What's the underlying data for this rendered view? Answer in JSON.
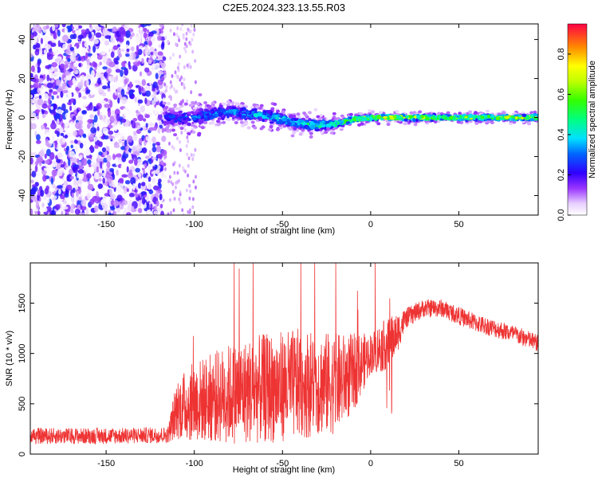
{
  "title": "C2E5.2024.323.13.55.R03",
  "chart_data": [
    {
      "type": "heatmap",
      "name": "spectrogram",
      "xlabel": "Height of straight line (km)",
      "ylabel": "Frequency (Hz)",
      "xlim": [
        -193,
        95
      ],
      "ylim": [
        -50,
        48
      ],
      "xticks": [
        -150,
        -100,
        -50,
        0,
        50
      ],
      "yticks": [
        -40,
        -20,
        0,
        20,
        40
      ],
      "noise_region": {
        "x": [
          -193,
          -117
        ],
        "y": [
          -50,
          48
        ]
      },
      "signal_track": {
        "x": [
          -117,
          -100,
          -80,
          -60,
          -40,
          -30,
          -20,
          -10,
          0,
          10,
          20,
          40,
          60,
          80,
          95
        ],
        "frequency": [
          0,
          0,
          3,
          1,
          -3,
          -4,
          -3,
          -1,
          0,
          0,
          0,
          0,
          0,
          0,
          0
        ],
        "spread": [
          6,
          6,
          5,
          5,
          4,
          4,
          3,
          2,
          2,
          2,
          2,
          2,
          2,
          2,
          2
        ],
        "intensity": [
          0.3,
          0.35,
          0.4,
          0.45,
          0.5,
          0.55,
          0.6,
          0.7,
          0.75,
          0.85,
          0.8,
          0.7,
          0.7,
          0.75,
          0.8
        ]
      },
      "colorbar": {
        "label": "Normalized spectral amplitude",
        "range": [
          0.0,
          0.95
        ],
        "ticks": [
          0.0,
          0.2,
          0.4,
          0.6,
          0.8
        ],
        "tick_labels": [
          "0.0",
          "0.2",
          "0.4",
          "0.6",
          "0.8"
        ]
      }
    },
    {
      "type": "line",
      "name": "snr",
      "xlabel": "Height of straight line (km)",
      "ylabel": "SNR (10 * v/v)",
      "xlim": [
        -193,
        95
      ],
      "ylim": [
        0,
        1900
      ],
      "xticks": [
        -150,
        -100,
        -50,
        0,
        50
      ],
      "yticks": [
        0,
        500,
        1000,
        1500
      ],
      "color": "#ee3333",
      "envelope": {
        "x": [
          -193,
          -150,
          -115,
          -110,
          -100,
          -80,
          -60,
          -40,
          -20,
          -10,
          -5,
          0,
          5,
          10,
          15,
          20,
          30,
          40,
          60,
          80,
          95
        ],
        "mean": [
          180,
          180,
          190,
          450,
          520,
          600,
          650,
          700,
          700,
          800,
          900,
          1000,
          1050,
          1100,
          1200,
          1350,
          1450,
          1450,
          1300,
          1200,
          1100
        ],
        "noise": [
          80,
          80,
          80,
          300,
          400,
          500,
          550,
          550,
          500,
          400,
          300,
          200,
          250,
          250,
          200,
          100,
          90,
          90,
          90,
          90,
          90
        ]
      }
    }
  ]
}
